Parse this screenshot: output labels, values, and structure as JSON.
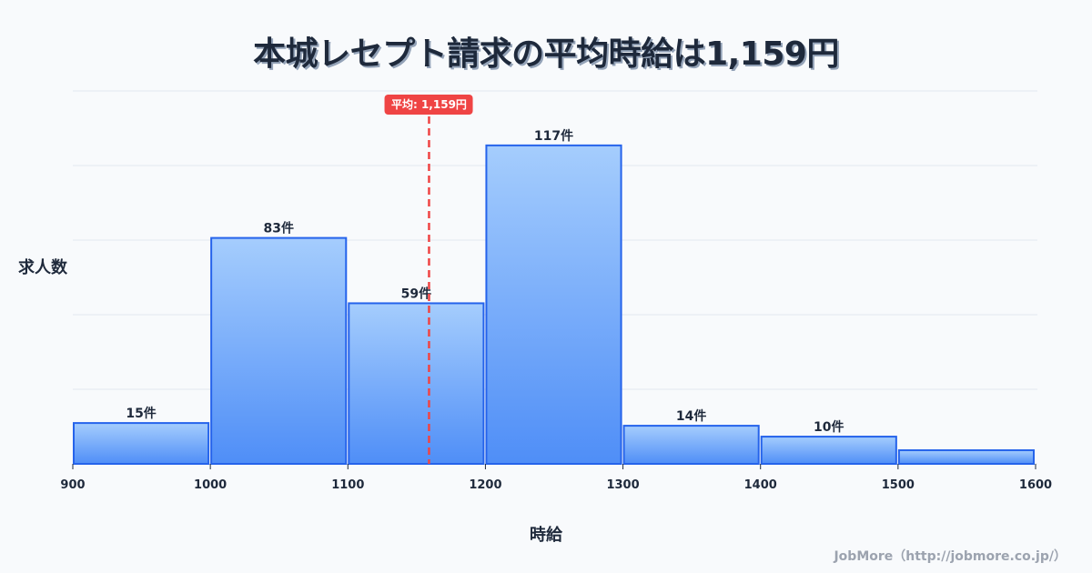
{
  "title": "本城レセプト請求の平均時給は1,159円",
  "footer": "JobMore（http://jobmore.co.jp/）",
  "colors": {
    "bar_top": "#a5cdfd",
    "bar_bottom": "#4f8ef7",
    "bar_border": "#2563eb",
    "mean_line": "#ef4444",
    "grid": "#e2e8f0",
    "text": "#1e293b"
  },
  "chart_data": {
    "type": "bar",
    "subtype": "histogram",
    "title": "本城レセプト請求の平均時給は1,159円",
    "xlabel": "時給",
    "ylabel": "求人数",
    "x_ticks": [
      900,
      1000,
      1100,
      1200,
      1300,
      1400,
      1500,
      1600
    ],
    "bins": [
      {
        "from": 900,
        "to": 1000,
        "value": 15,
        "label": "15件"
      },
      {
        "from": 1000,
        "to": 1100,
        "value": 83,
        "label": "83件"
      },
      {
        "from": 1100,
        "to": 1200,
        "value": 59,
        "label": "59件"
      },
      {
        "from": 1200,
        "to": 1300,
        "value": 117,
        "label": "117件"
      },
      {
        "from": 1300,
        "to": 1400,
        "value": 14,
        "label": "14件"
      },
      {
        "from": 1400,
        "to": 1500,
        "value": 10,
        "label": "10件"
      },
      {
        "from": 1500,
        "to": 1600,
        "value": 5,
        "label": ""
      }
    ],
    "categories": [
      "900-1000",
      "1000-1100",
      "1100-1200",
      "1200-1300",
      "1300-1400",
      "1400-1500",
      "1500-1600"
    ],
    "values": [
      15,
      83,
      59,
      117,
      14,
      10,
      5
    ],
    "mean": {
      "value": 1159,
      "label": "平均: 1,159円"
    },
    "xlim": [
      900,
      1600
    ],
    "ylim": [
      0,
      137
    ],
    "grid": true,
    "grid_lines": 5,
    "legend": "none"
  }
}
